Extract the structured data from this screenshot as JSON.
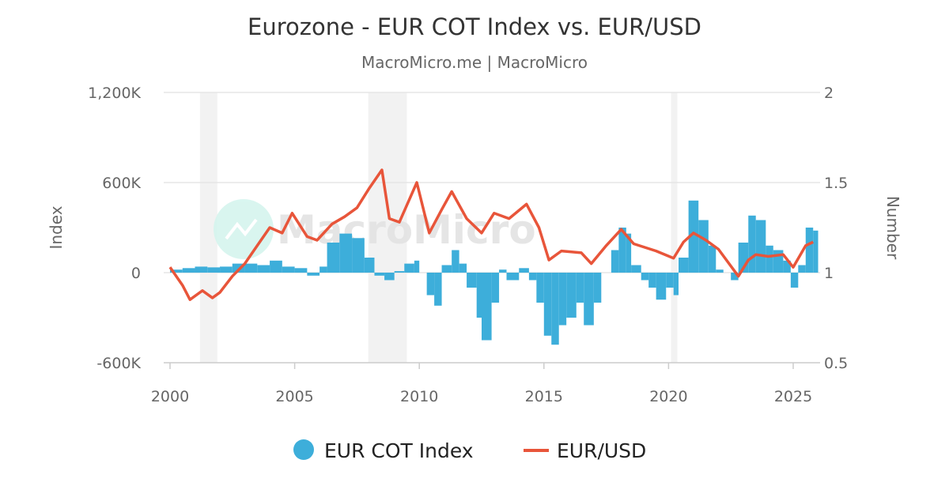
{
  "chart_data": {
    "type": "bar+line",
    "title": "Eurozone - EUR COT Index vs. EUR/USD",
    "subtitle": "MacroMicro.me | MacroMicro",
    "watermark": "MacroMicro",
    "left_axis": {
      "label": "Index",
      "range": [
        -600,
        1200
      ],
      "ticks": [
        -600,
        0,
        600,
        1200
      ],
      "tick_labels": [
        "-600K",
        "0",
        "600K",
        "1,200K"
      ]
    },
    "right_axis": {
      "label": "Number",
      "range": [
        0.5,
        2
      ],
      "ticks": [
        0.5,
        1,
        1.5,
        2
      ],
      "tick_labels": [
        "0.5",
        "1",
        "1.5",
        "2"
      ]
    },
    "x_axis": {
      "range": [
        2000,
        2026.1
      ],
      "ticks": [
        2000,
        2005,
        2010,
        2015,
        2020,
        2025
      ],
      "tick_labels": [
        "2000",
        "2005",
        "2010",
        "2015",
        "2020",
        "2025"
      ]
    },
    "grid": true,
    "legend_position": "bottom",
    "recession_bands": [
      [
        2001.2,
        2001.9
      ],
      [
        2007.95,
        2009.5
      ],
      [
        2020.1,
        2020.35
      ]
    ],
    "series": [
      {
        "name": "EUR COT Index",
        "type": "bar",
        "axis": "left",
        "color": "#3DAEDA",
        "x": [
          2000,
          2000.5,
          2001,
          2001.5,
          2002,
          2002.5,
          2003,
          2003.5,
          2004,
          2004.5,
          2005,
          2005.5,
          2006,
          2006.3,
          2006.8,
          2007.3,
          2007.8,
          2008.2,
          2008.6,
          2009,
          2009.4,
          2009.8,
          2010,
          2010.3,
          2010.6,
          2010.9,
          2011.3,
          2011.6,
          2011.9,
          2012.3,
          2012.5,
          2012.9,
          2013.2,
          2013.5,
          2014,
          2014.4,
          2014.7,
          2015,
          2015.3,
          2015.6,
          2015.9,
          2016.3,
          2016.6,
          2017,
          2017.3,
          2017.7,
          2018,
          2018.3,
          2018.5,
          2018.9,
          2019.2,
          2019.5,
          2019.9,
          2020.2,
          2020.4,
          2020.8,
          2021.2,
          2021.6,
          2021.9,
          2022.2,
          2022.5,
          2022.8,
          2023.2,
          2023.5,
          2023.9,
          2024.2,
          2024.6,
          2024.9,
          2025.2,
          2025.5,
          2025.8
        ],
        "values": [
          20,
          30,
          40,
          35,
          40,
          60,
          60,
          50,
          80,
          40,
          30,
          -20,
          40,
          200,
          260,
          230,
          100,
          -20,
          -50,
          10,
          60,
          80,
          0,
          -150,
          -220,
          50,
          150,
          60,
          -100,
          -300,
          -450,
          -200,
          20,
          -50,
          30,
          -50,
          -200,
          -420,
          -480,
          -350,
          -300,
          -200,
          -350,
          -200,
          0,
          150,
          300,
          260,
          50,
          -50,
          -100,
          -180,
          -100,
          -150,
          100,
          480,
          350,
          180,
          20,
          0,
          -50,
          200,
          380,
          350,
          180,
          150,
          80,
          -100,
          50,
          300,
          280
        ]
      },
      {
        "name": "EUR/USD",
        "type": "line",
        "axis": "right",
        "color": "#E8553A",
        "x": [
          2000,
          2000.5,
          2000.8,
          2001.3,
          2001.7,
          2002,
          2002.5,
          2003,
          2003.5,
          2004,
          2004.5,
          2004.9,
          2005.5,
          2005.9,
          2006.5,
          2007,
          2007.5,
          2008,
          2008.5,
          2008.8,
          2009.2,
          2009.9,
          2010.4,
          2010.9,
          2011.3,
          2011.9,
          2012.5,
          2013,
          2013.6,
          2014.3,
          2014.8,
          2015.2,
          2015.7,
          2016.5,
          2016.9,
          2017.5,
          2018.1,
          2018.6,
          2019.5,
          2020.2,
          2020.6,
          2021,
          2021.5,
          2022,
          2022.8,
          2023.2,
          2023.5,
          2024,
          2024.6,
          2025,
          2025.5,
          2025.8
        ],
        "values": [
          1.03,
          0.93,
          0.85,
          0.9,
          0.86,
          0.89,
          0.98,
          1.05,
          1.15,
          1.25,
          1.22,
          1.33,
          1.2,
          1.18,
          1.27,
          1.31,
          1.36,
          1.47,
          1.57,
          1.3,
          1.28,
          1.5,
          1.22,
          1.35,
          1.45,
          1.3,
          1.22,
          1.33,
          1.3,
          1.38,
          1.25,
          1.07,
          1.12,
          1.11,
          1.05,
          1.15,
          1.24,
          1.16,
          1.12,
          1.08,
          1.17,
          1.22,
          1.18,
          1.13,
          0.98,
          1.07,
          1.1,
          1.09,
          1.1,
          1.03,
          1.15,
          1.17
        ]
      }
    ]
  }
}
